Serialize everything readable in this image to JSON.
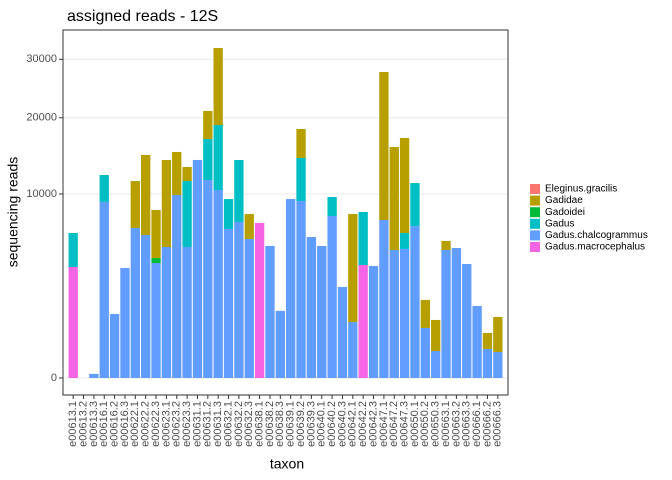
{
  "chart_data": {
    "type": "stacked_bar",
    "title": "assigned reads - 12S",
    "x_label": "taxon",
    "y_label": "sequencing reads",
    "y_scale": "sqrt",
    "grid": true,
    "legend_position": "right",
    "categories": [
      "e00613.1",
      "e00613.2",
      "e00613.3",
      "e00616.1",
      "e00616.2",
      "e00616.3",
      "e00622.1",
      "e00622.2",
      "e00622.3",
      "e00623.1",
      "e00623.2",
      "e00623.3",
      "e00631.1",
      "e00631.2",
      "e00631.3",
      "e00632.1",
      "e00632.2",
      "e00632.3",
      "e00638.1",
      "e00638.2",
      "e00638.3",
      "e00639.1",
      "e00639.2",
      "e00639.3",
      "e00640.1",
      "e00640.2",
      "e00640.3",
      "e00642.1",
      "e00642.2",
      "e00642.3",
      "e00647.1",
      "e00647.2",
      "e00647.3",
      "e00650.1",
      "e00650.2",
      "e00650.3",
      "e00663.1",
      "e00663.2",
      "e00663.3",
      "e00666.1",
      "e00666.2",
      "e00666.3"
    ],
    "series": [
      {
        "name": "Eleginus.gracilis",
        "color": "#F8766D",
        "values": [
          0,
          0,
          0,
          0,
          0,
          0,
          0,
          0,
          0,
          0,
          0,
          0,
          0,
          0,
          0,
          0,
          0,
          0,
          0,
          0,
          0,
          0,
          0,
          0,
          0,
          0,
          0,
          0,
          0,
          0,
          0,
          0,
          0,
          0,
          0,
          0,
          0,
          0,
          0,
          0,
          0,
          0
        ]
      },
      {
        "name": "Gadidae",
        "color": "#B79F00",
        "values": [
          0,
          0,
          0,
          0,
          0,
          0,
          4810,
          8650,
          4090,
          8970,
          5200,
          1690,
          0,
          4190,
          13260,
          0,
          0,
          2230,
          0,
          0,
          0,
          0,
          4010,
          0,
          0,
          0,
          0,
          7015,
          0,
          0,
          20290,
          10920,
          10800,
          0,
          1060,
          780,
          710,
          0,
          0,
          0,
          350,
          900
        ]
      },
      {
        "name": "Gadoidei",
        "color": "#00BA38",
        "values": [
          0,
          0,
          0,
          0,
          0,
          0,
          0,
          0,
          345,
          0,
          0,
          0,
          0,
          0,
          0,
          0,
          0,
          0,
          0,
          0,
          0,
          0,
          0,
          0,
          0,
          0,
          0,
          0,
          0,
          0,
          0,
          0,
          0,
          0,
          0,
          0,
          0,
          0,
          0,
          0,
          0,
          0
        ]
      },
      {
        "name": "Gadus",
        "color": "#00BFC4",
        "values": [
          2570,
          0,
          0,
          3020,
          0,
          0,
          0,
          0,
          0,
          0,
          0,
          6390,
          0,
          5290,
          8460,
          2900,
          6850,
          0,
          0,
          0,
          0,
          0,
          5050,
          0,
          0,
          1930,
          0,
          0,
          4370,
          0,
          0,
          0,
          1290,
          4410,
          0,
          0,
          0,
          0,
          0,
          0,
          0,
          0
        ]
      },
      {
        "name": "Gadus.chalcogrammus",
        "color": "#619CFF",
        "values": [
          0,
          0,
          5,
          9150,
          1210,
          3570,
          6650,
          6040,
          3905,
          5070,
          9890,
          5070,
          14040,
          11580,
          10440,
          6560,
          7190,
          5710,
          0,
          5150,
          1330,
          9460,
          9250,
          5870,
          5150,
          7750,
          2450,
          925,
          0,
          3705,
          7370,
          4840,
          4920,
          6820,
          740,
          215,
          4840,
          4990,
          3840,
          1530,
          250,
          200
        ]
      },
      {
        "name": "Gadus.macrocephalus",
        "color": "#F564E3",
        "values": [
          3640,
          0,
          0,
          0,
          0,
          0,
          0,
          0,
          0,
          0,
          0,
          0,
          0,
          0,
          0,
          0,
          0,
          0,
          7100,
          0,
          0,
          0,
          0,
          0,
          0,
          0,
          0,
          0,
          3770,
          0,
          0,
          0,
          0,
          0,
          0,
          0,
          0,
          0,
          0,
          0,
          0,
          0
        ]
      }
    ],
    "ylim": [
      0,
      35770
    ],
    "yticks": [
      0,
      10000,
      20000,
      30000
    ]
  }
}
